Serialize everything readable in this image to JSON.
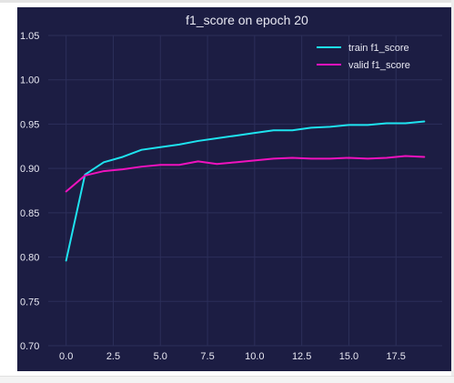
{
  "chart_data": {
    "type": "line",
    "title": "f1_score on epoch 20",
    "xlabel": "",
    "ylabel": "",
    "xlim": [
      -0.95,
      19.95
    ],
    "ylim": [
      0.7,
      1.05
    ],
    "x_ticks": [
      "0.0",
      "2.5",
      "5.0",
      "7.5",
      "10.0",
      "12.5",
      "15.0",
      "17.5"
    ],
    "x_tick_values": [
      0,
      2.5,
      5,
      7.5,
      10,
      12.5,
      15,
      17.5
    ],
    "y_ticks": [
      "0.70",
      "0.75",
      "0.80",
      "0.85",
      "0.90",
      "0.95",
      "1.00",
      "1.05"
    ],
    "y_tick_values": [
      0.7,
      0.75,
      0.8,
      0.85,
      0.9,
      0.95,
      1.0,
      1.05
    ],
    "grid": true,
    "legend_position": "top-right",
    "x": [
      0,
      1,
      2,
      3,
      4,
      5,
      6,
      7,
      8,
      9,
      10,
      11,
      12,
      13,
      14,
      15,
      16,
      17,
      18,
      19
    ],
    "series": [
      {
        "name": "train f1_score",
        "color": "#1ee3ef",
        "values": [
          0.796,
          0.893,
          0.907,
          0.913,
          0.921,
          0.924,
          0.927,
          0.931,
          0.934,
          0.937,
          0.94,
          0.943,
          0.943,
          0.946,
          0.947,
          0.949,
          0.949,
          0.951,
          0.951,
          0.953
        ]
      },
      {
        "name": "valid f1_score",
        "color": "#f012be",
        "values": [
          0.874,
          0.892,
          0.897,
          0.899,
          0.902,
          0.904,
          0.904,
          0.908,
          0.905,
          0.907,
          0.909,
          0.911,
          0.912,
          0.911,
          0.911,
          0.912,
          0.911,
          0.912,
          0.914,
          0.913
        ]
      }
    ]
  },
  "colors": {
    "figure_background": "#1c1d43",
    "grid": "#2c2f5a",
    "text": "#e8e8f2"
  }
}
